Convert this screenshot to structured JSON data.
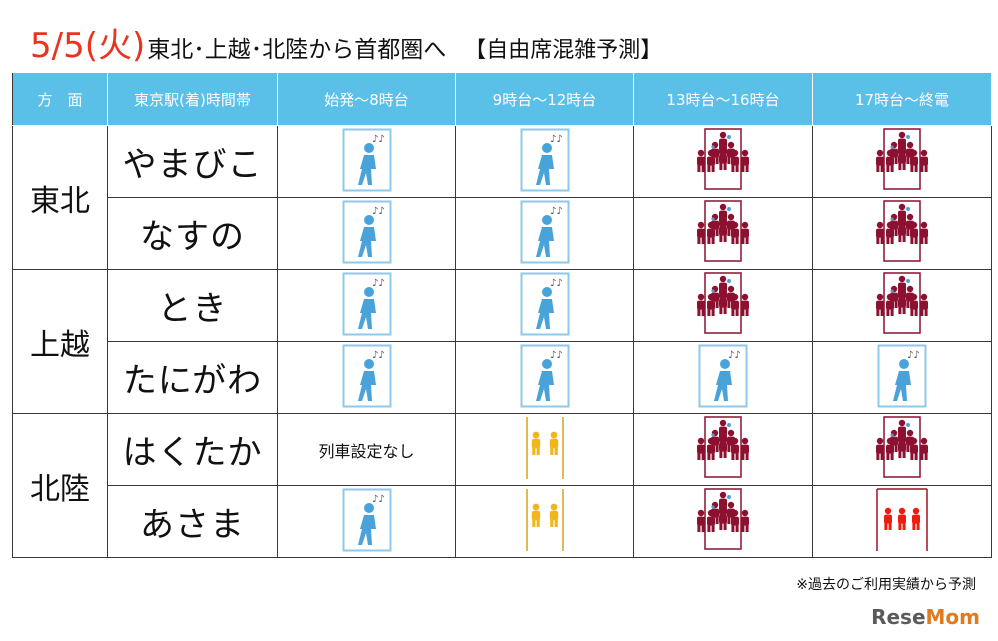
{
  "title": {
    "date": "5/5(火)",
    "main": "東北･上越･北陸から首都圏へ",
    "bracket": "【自由席混雑予測】"
  },
  "headers": [
    "方　面",
    "東京駅(着)時間帯",
    "始発～8時台",
    "9時台～12時台",
    "13時台～16時台",
    "17時台～終電"
  ],
  "groups": [
    {
      "direction": "東北",
      "trains": [
        {
          "name": "やまびこ",
          "levels": [
            "empty",
            "empty",
            "crowded",
            "crowded"
          ]
        },
        {
          "name": "なすの",
          "levels": [
            "empty",
            "empty",
            "crowded",
            "crowded"
          ]
        }
      ]
    },
    {
      "direction": "上越",
      "trains": [
        {
          "name": "とき",
          "levels": [
            "empty",
            "empty",
            "crowded",
            "crowded"
          ]
        },
        {
          "name": "たにがわ",
          "levels": [
            "empty",
            "empty",
            "empty",
            "empty"
          ]
        }
      ]
    },
    {
      "direction": "北陸",
      "trains": [
        {
          "name": "はくたか",
          "levels": [
            "none",
            "standing",
            "crowded",
            "crowded"
          ]
        },
        {
          "name": "あさま",
          "levels": [
            "empty",
            "standing",
            "crowded",
            "very-busy"
          ]
        }
      ]
    }
  ],
  "no_service_text": "列車設定なし",
  "footnote": "※過去のご利用実績から予測",
  "logo": {
    "part1": "Rese",
    "part2": "Mom"
  },
  "colors": {
    "header_bg": "#5bc0e8",
    "date_red": "#e8331f",
    "empty_icon": "#4aa3d8",
    "standing_icon": "#f2b51c",
    "crowded_icon": "#8c1130",
    "very_busy_icon": "#ee1c10"
  }
}
